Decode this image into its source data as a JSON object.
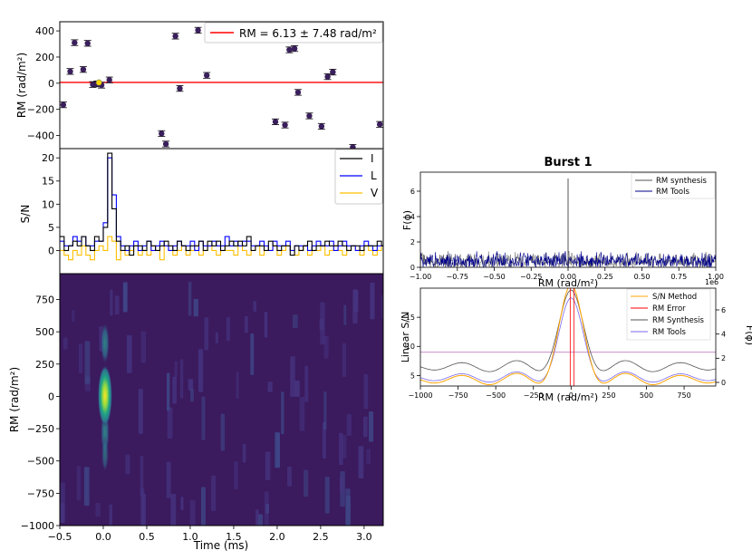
{
  "chart_data": [
    {
      "id": "rm_vs_time",
      "type": "scatter",
      "ylabel": "RM (rad/m²)",
      "xlim": [
        -0.5,
        3.22
      ],
      "ylim": [
        -500,
        470
      ],
      "yticks": [
        "400",
        "200",
        "0",
        "−200",
        "−400"
      ],
      "ytick_values": [
        400,
        200,
        0,
        -200,
        -400
      ],
      "legend": "top-right",
      "fit_line": {
        "label": "RM = 6.13 ± 7.48 rad/m²",
        "value": 6.13,
        "color": "#ff0000"
      },
      "marker_color": "#3a1f5c",
      "highlight_color": "#f2d400",
      "errorbar": 22,
      "points": [
        {
          "x": -0.46,
          "y": -165
        },
        {
          "x": -0.38,
          "y": 90
        },
        {
          "x": -0.33,
          "y": 310
        },
        {
          "x": -0.23,
          "y": 105
        },
        {
          "x": -0.18,
          "y": 305
        },
        {
          "x": -0.12,
          "y": -10
        },
        {
          "x": -0.07,
          "y": -5
        },
        {
          "x": -0.02,
          "y": -15
        },
        {
          "x": 0.07,
          "y": 25
        },
        {
          "x": 0.67,
          "y": -385
        },
        {
          "x": 0.72,
          "y": -465
        },
        {
          "x": 0.83,
          "y": 360
        },
        {
          "x": 0.88,
          "y": -40
        },
        {
          "x": 1.09,
          "y": 405
        },
        {
          "x": 1.19,
          "y": 60
        },
        {
          "x": 1.98,
          "y": -295
        },
        {
          "x": 2.09,
          "y": -320
        },
        {
          "x": 2.14,
          "y": 255
        },
        {
          "x": 2.2,
          "y": 265
        },
        {
          "x": 2.24,
          "y": -70
        },
        {
          "x": 2.37,
          "y": -250
        },
        {
          "x": 2.51,
          "y": -330
        },
        {
          "x": 2.58,
          "y": 50
        },
        {
          "x": 2.64,
          "y": 85
        },
        {
          "x": 2.87,
          "y": -490
        },
        {
          "x": 3.18,
          "y": -315
        }
      ],
      "highlight_point": {
        "x": -0.05,
        "y": 5
      }
    },
    {
      "id": "sn_profile",
      "type": "line",
      "ylabel": "S/N",
      "xlim": [
        -0.5,
        3.22
      ],
      "ylim": [
        -5,
        22
      ],
      "yticks": [
        "20",
        "15",
        "10",
        "5",
        "0"
      ],
      "ytick_values": [
        20,
        15,
        10,
        5,
        0
      ],
      "legend": "top-right",
      "x_start": -0.5,
      "bin_width": 0.05,
      "series": [
        {
          "name": "I",
          "color": "#000000",
          "values": [
            3,
            0,
            1,
            2,
            1,
            3,
            1,
            0,
            3,
            2,
            5,
            21,
            9,
            2,
            0,
            1,
            -1,
            1,
            1,
            0,
            2,
            1,
            0,
            1,
            2,
            1,
            0,
            2,
            1,
            0,
            1,
            1,
            2,
            0,
            2,
            1,
            2,
            0,
            1,
            2,
            1,
            2,
            1,
            3,
            0,
            1,
            1,
            0,
            2,
            1,
            0,
            1,
            1,
            -1,
            1,
            0,
            1,
            2,
            0,
            1,
            1,
            2,
            1,
            1,
            2,
            1,
            0,
            1,
            1,
            0,
            1,
            1,
            1,
            2,
            1,
            1,
            2,
            5,
            4,
            3,
            3,
            2,
            1,
            2,
            1
          ]
        },
        {
          "name": "L",
          "color": "#0000ff",
          "values": [
            2,
            1,
            1,
            3,
            2,
            3,
            1,
            1,
            2,
            2,
            6,
            20,
            12,
            3,
            1,
            0,
            1,
            2,
            0,
            1,
            2,
            0,
            1,
            2,
            1,
            0,
            1,
            2,
            1,
            1,
            2,
            0,
            2,
            1,
            1,
            2,
            1,
            1,
            3,
            1,
            2,
            1,
            2,
            2,
            1,
            1,
            2,
            1,
            0,
            2,
            1,
            1,
            2,
            0,
            1,
            1,
            1,
            0,
            1,
            2,
            1,
            1,
            2,
            0,
            1,
            2,
            1,
            1,
            0,
            1,
            2,
            1,
            0,
            1,
            1,
            2,
            1,
            4,
            3,
            3,
            2,
            3,
            2,
            3,
            2
          ]
        },
        {
          "name": "V",
          "color": "#ffbf00",
          "values": [
            0,
            -1,
            -2,
            0,
            -1,
            1,
            -1,
            -2,
            0,
            1,
            0,
            3,
            2,
            -2,
            0,
            -1,
            0,
            1,
            -1,
            0,
            -1,
            1,
            0,
            -2,
            1,
            0,
            -1,
            0,
            1,
            -1,
            0,
            1,
            -1,
            0,
            1,
            0,
            -1,
            1,
            0,
            0,
            -1,
            1,
            0,
            -1,
            0,
            1,
            -1,
            0,
            0,
            1,
            -1,
            0,
            1,
            0,
            -1,
            0,
            1,
            -1,
            0,
            0,
            1,
            -1,
            0,
            1,
            0,
            -1,
            0,
            1,
            0,
            -1,
            1,
            0,
            -1,
            0,
            1,
            -1,
            0,
            1,
            0,
            -1,
            0,
            1,
            -1,
            0,
            1
          ]
        }
      ]
    },
    {
      "id": "rm_waterfall",
      "type": "heatmap",
      "xlabel": "Time (ms)",
      "ylabel": "RM (rad/m²)",
      "xlim": [
        -0.5,
        3.22
      ],
      "ylim": [
        -1000,
        950
      ],
      "xticks": [
        "−0.5",
        "0.0",
        "0.5",
        "1.0",
        "1.5",
        "2.0",
        "2.5",
        "3.0"
      ],
      "xtick_values": [
        -0.5,
        0,
        0.5,
        1,
        1.5,
        2,
        2.5,
        3
      ],
      "yticks": [
        "750",
        "500",
        "250",
        "0",
        "−250",
        "−500",
        "−750",
        "−1000"
      ],
      "ytick_values": [
        750,
        500,
        250,
        0,
        -250,
        -500,
        -750,
        -1000
      ],
      "colormap": "viridis",
      "background_color": "#3b1a5e",
      "peak": {
        "x": 0.02,
        "y": 5
      }
    },
    {
      "id": "rm_spectrum",
      "type": "line",
      "title": "Burst 1",
      "xlabel": "RM (rad/m²)",
      "ylabel": "F(ϕ)",
      "xlim": [
        -1000000,
        1000000
      ],
      "ylim": [
        0,
        7.5
      ],
      "xticks": [
        "−1.00",
        "−0.75",
        "−0.50",
        "−0.25",
        "0.00",
        "0.25",
        "0.50",
        "0.75",
        "1.00"
      ],
      "xtick_values": [
        -1000000,
        -750000,
        -500000,
        -250000,
        0,
        250000,
        500000,
        750000,
        1000000
      ],
      "x_offset_text": "1e6",
      "yticks": [
        "6",
        "4",
        "2",
        "0"
      ],
      "ytick_values": [
        6,
        4,
        2,
        0
      ],
      "legend": "top-right",
      "noise_level": 0.8,
      "peak_value": 7.0,
      "series": [
        {
          "name": "RM synthesis",
          "color": "#555555"
        },
        {
          "name": "RM Tools",
          "color": "#00008b"
        }
      ]
    },
    {
      "id": "rm_zoom",
      "type": "line",
      "xlabel": "RM (rad/m²)",
      "ylabel": "Linear S/N",
      "y2label": "F(ϕ)",
      "xlim": [
        -1000,
        960
      ],
      "ylim": [
        3.2,
        20
      ],
      "y2lim": [
        -0.3,
        7.8
      ],
      "xticks": [
        "−1000",
        "−750",
        "−500",
        "−250",
        "0",
        "250",
        "500",
        "750"
      ],
      "xtick_values": [
        -1000,
        -750,
        -500,
        -250,
        0,
        250,
        500,
        750
      ],
      "yticks": [
        "15",
        "10",
        "5"
      ],
      "ytick_values": [
        15,
        10,
        5
      ],
      "y2ticks": [
        "6",
        "4",
        "2",
        "0"
      ],
      "y2tick_values": [
        6,
        4,
        2,
        0
      ],
      "legend": "top-right",
      "error_line": 9.0,
      "series": [
        {
          "name": "S/N Method",
          "color": "#ffa500",
          "peak": 19.0,
          "base": 4.3,
          "amp": 1.6
        },
        {
          "name": "RM Error",
          "color": "#ff0000",
          "vline": 6.13
        },
        {
          "name": "RM Synthesis",
          "color": "#555555",
          "peak": 6.9,
          "base": 1.3,
          "amp": 0.75,
          "axis": "y2"
        },
        {
          "name": "RM Tools",
          "color": "#7b68ee",
          "peak": 6.3,
          "base": 0.4,
          "amp": 0.7,
          "axis": "y2"
        }
      ]
    }
  ]
}
